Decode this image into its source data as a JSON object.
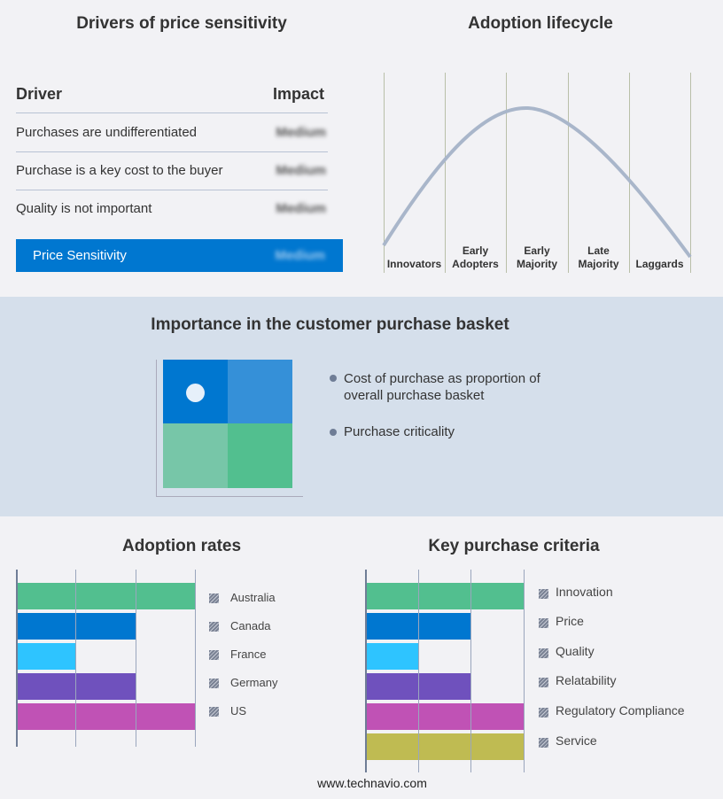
{
  "drivers": {
    "title": "Drivers of price sensitivity",
    "col_driver": "Driver",
    "col_impact": "Impact",
    "rows": [
      {
        "driver": "Purchases are undifferentiated",
        "impact": "Medium"
      },
      {
        "driver": "Purchase is a key cost to the buyer",
        "impact": "Medium"
      },
      {
        "driver": "Quality is not important",
        "impact": "Medium"
      }
    ],
    "summary": {
      "label": "Price Sensitivity",
      "impact": "Medium"
    }
  },
  "lifecycle": {
    "title": "Adoption lifecycle",
    "stages": [
      "Innovators",
      "Early Adopters",
      "Early Majority",
      "Late Majority",
      "Laggards"
    ]
  },
  "basket": {
    "title": "Importance in the customer purchase basket",
    "legend": [
      "Cost of purchase as proportion of overall purchase basket",
      "Purchase criticality"
    ],
    "colors": [
      "#0077d0",
      "#3590d8",
      "#77c6a8",
      "#52bf8f"
    ]
  },
  "chart_data": [
    {
      "type": "bar",
      "title": "Adoption rates",
      "orientation": "horizontal",
      "categories": [
        "Australia",
        "Canada",
        "France",
        "Germany",
        "US"
      ],
      "values": [
        3,
        2,
        1,
        2,
        3
      ],
      "xlim": [
        0,
        3
      ],
      "grid": true,
      "legend": "right",
      "colors": [
        "#52bf8f",
        "#0077d0",
        "#2ec4ff",
        "#6f51bd",
        "#c052b5"
      ]
    },
    {
      "type": "bar",
      "title": "Key purchase criteria",
      "orientation": "horizontal",
      "categories": [
        "Innovation",
        "Price",
        "Quality",
        "Relatability",
        "Regulatory Compliance",
        "Service"
      ],
      "values": [
        3,
        2,
        1,
        2,
        3,
        3
      ],
      "xlim": [
        0,
        3
      ],
      "grid": true,
      "legend": "right",
      "colors": [
        "#52bf8f",
        "#0077d0",
        "#2ec4ff",
        "#6f51bd",
        "#c052b5",
        "#bfbb52"
      ]
    }
  ],
  "footer": "www.technavio.com"
}
